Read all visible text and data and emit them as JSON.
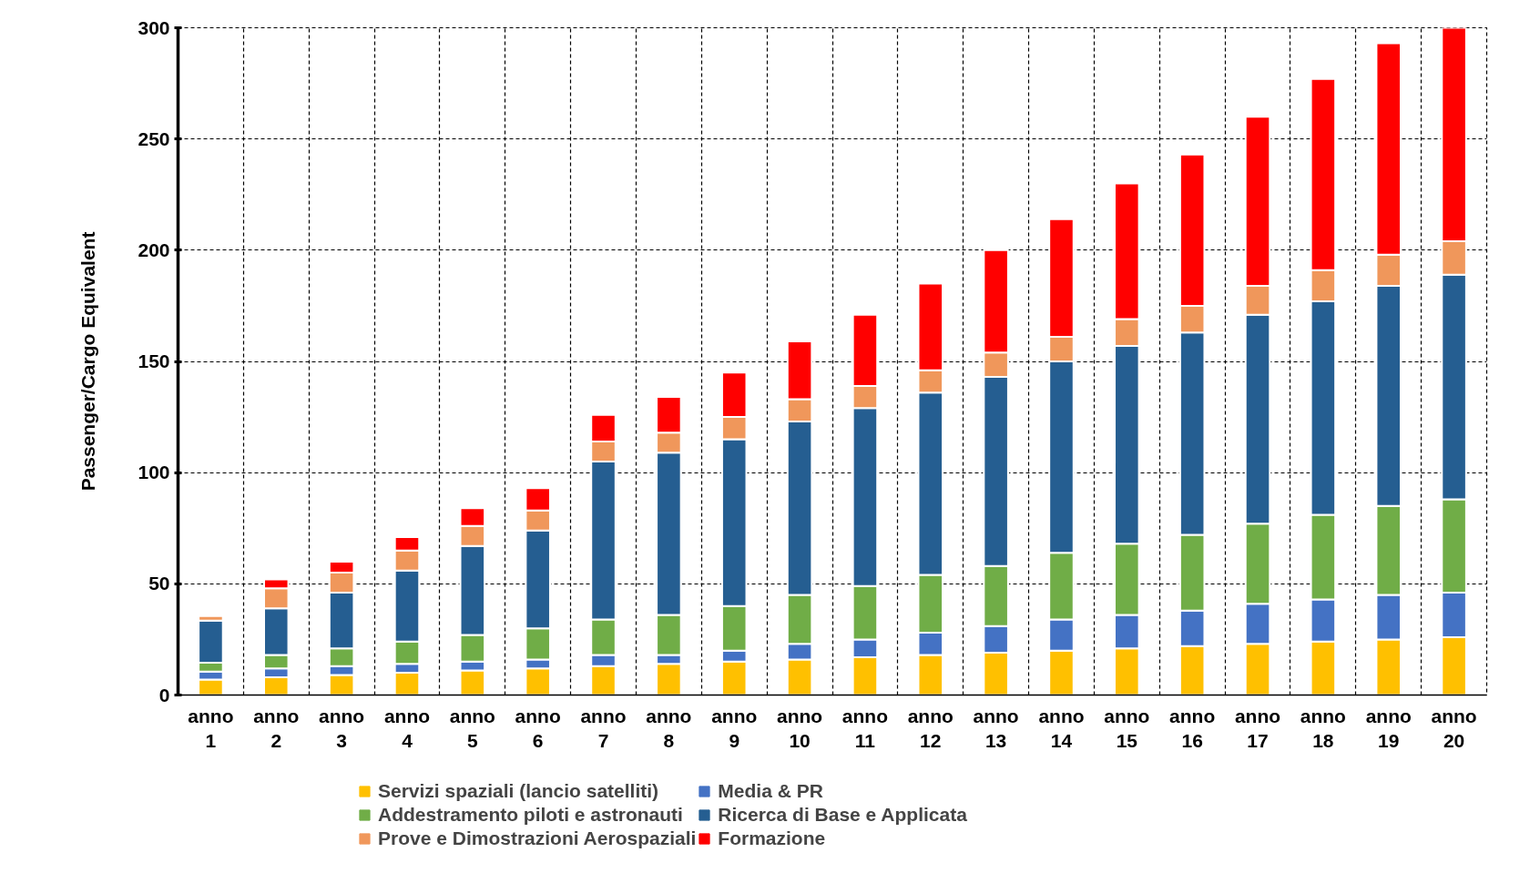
{
  "chart_data": {
    "type": "bar",
    "stacked": true,
    "ylabel": "Passenger/Cargo Equivalent",
    "categories": [
      "anno\n1",
      "anno\n2",
      "anno\n3",
      "anno\n4",
      "anno\n5",
      "anno\n6",
      "anno\n7",
      "anno\n8",
      "anno\n9",
      "anno\n10",
      "anno\n11",
      "anno\n12",
      "anno\n13",
      "anno\n14",
      "anno\n15",
      "anno\n16",
      "anno\n17",
      "anno\n18",
      "anno\n19",
      "anno\n20"
    ],
    "series": [
      {
        "name": "Servizi spaziali (lancio satelliti)",
        "color": "#ffc000",
        "values": [
          7,
          8,
          9,
          10,
          11,
          12,
          13,
          14,
          15,
          16,
          17,
          18,
          19,
          20,
          21,
          22,
          23,
          24,
          25,
          26
        ]
      },
      {
        "name": "Media & PR",
        "color": "#4472c4",
        "values": [
          3.5,
          4,
          4,
          4,
          4,
          4,
          5,
          4,
          5,
          7,
          8,
          10,
          12,
          14,
          15,
          16,
          18,
          19,
          20,
          20
        ]
      },
      {
        "name": "Addestramento piloti e astronauti",
        "color": "#70ad47",
        "values": [
          4,
          6,
          8,
          10,
          12,
          14,
          16,
          18,
          20,
          22,
          24,
          26,
          27,
          30,
          32,
          34,
          36,
          38,
          40,
          42
        ]
      },
      {
        "name": "Ricerca di Base e Applicata",
        "color": "#255e91",
        "values": [
          19,
          21,
          25,
          32,
          40,
          44,
          71,
          73,
          75,
          78,
          80,
          82,
          85,
          86,
          89,
          91,
          94,
          96,
          99,
          101
        ]
      },
      {
        "name": "Prove e Dimostrazioni Aerospaziali",
        "color": "#f0975b",
        "values": [
          2,
          9,
          9,
          9,
          9,
          9,
          9,
          9,
          10,
          10,
          10,
          10,
          11,
          11,
          12,
          12,
          13,
          14,
          14,
          15
        ]
      },
      {
        "name": "Formazione",
        "color": "#ff0000",
        "values": [
          null,
          4,
          5,
          6,
          8,
          10,
          12,
          16,
          20,
          26,
          32,
          39,
          46,
          53,
          61,
          68,
          76,
          86,
          95,
          96
        ]
      }
    ],
    "ylim": [
      0,
      300
    ],
    "yticks": [
      0,
      50,
      100,
      150,
      200,
      250,
      300
    ],
    "grid": true,
    "legend": "bottom"
  }
}
